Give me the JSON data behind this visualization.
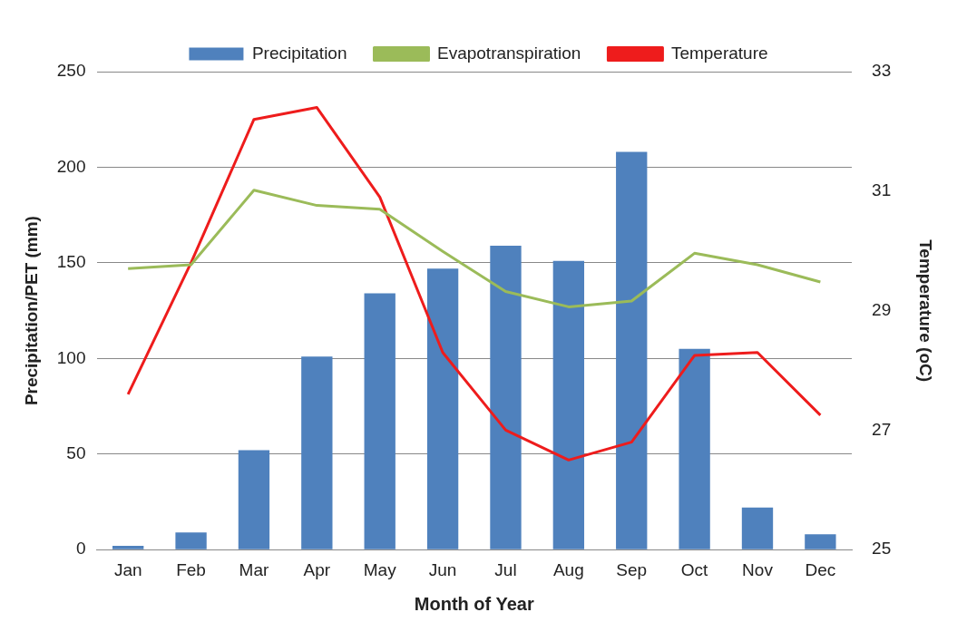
{
  "chart_data": {
    "type": "bar",
    "xlabel": "Month of Year",
    "ylabel": "Precipitation/PET (mm)",
    "y2label": "Temperature (oC)",
    "categories": [
      "Jan",
      "Feb",
      "Mar",
      "Apr",
      "May",
      "Jun",
      "Jul",
      "Aug",
      "Sep",
      "Oct",
      "Nov",
      "Dec"
    ],
    "series": [
      {
        "name": "Precipitation",
        "color": "#4f81bd",
        "values": [
          2,
          9,
          52,
          101,
          134,
          147,
          159,
          151,
          208,
          105,
          22,
          8
        ]
      },
      {
        "name": "Evapotranspiration",
        "type": "line",
        "color": "#9bbb59",
        "values": [
          147,
          149,
          188,
          180,
          178,
          156,
          135,
          127,
          130,
          155,
          149,
          140
        ]
      },
      {
        "name": "Temperature",
        "type": "line",
        "axis": "y2",
        "color": "#ee1c1c",
        "values": [
          27.6,
          29.8,
          32.2,
          32.4,
          30.9,
          28.3,
          27.0,
          26.5,
          26.8,
          28.25,
          28.3,
          27.25
        ]
      }
    ],
    "ylim": [
      0,
      250
    ],
    "yticks": [
      0,
      50,
      100,
      150,
      200,
      250
    ],
    "y2lim": [
      25,
      33
    ],
    "y2ticks": [
      25,
      27,
      29,
      31,
      33
    ],
    "grid": "y",
    "legend": "top",
    "marker": "none"
  }
}
